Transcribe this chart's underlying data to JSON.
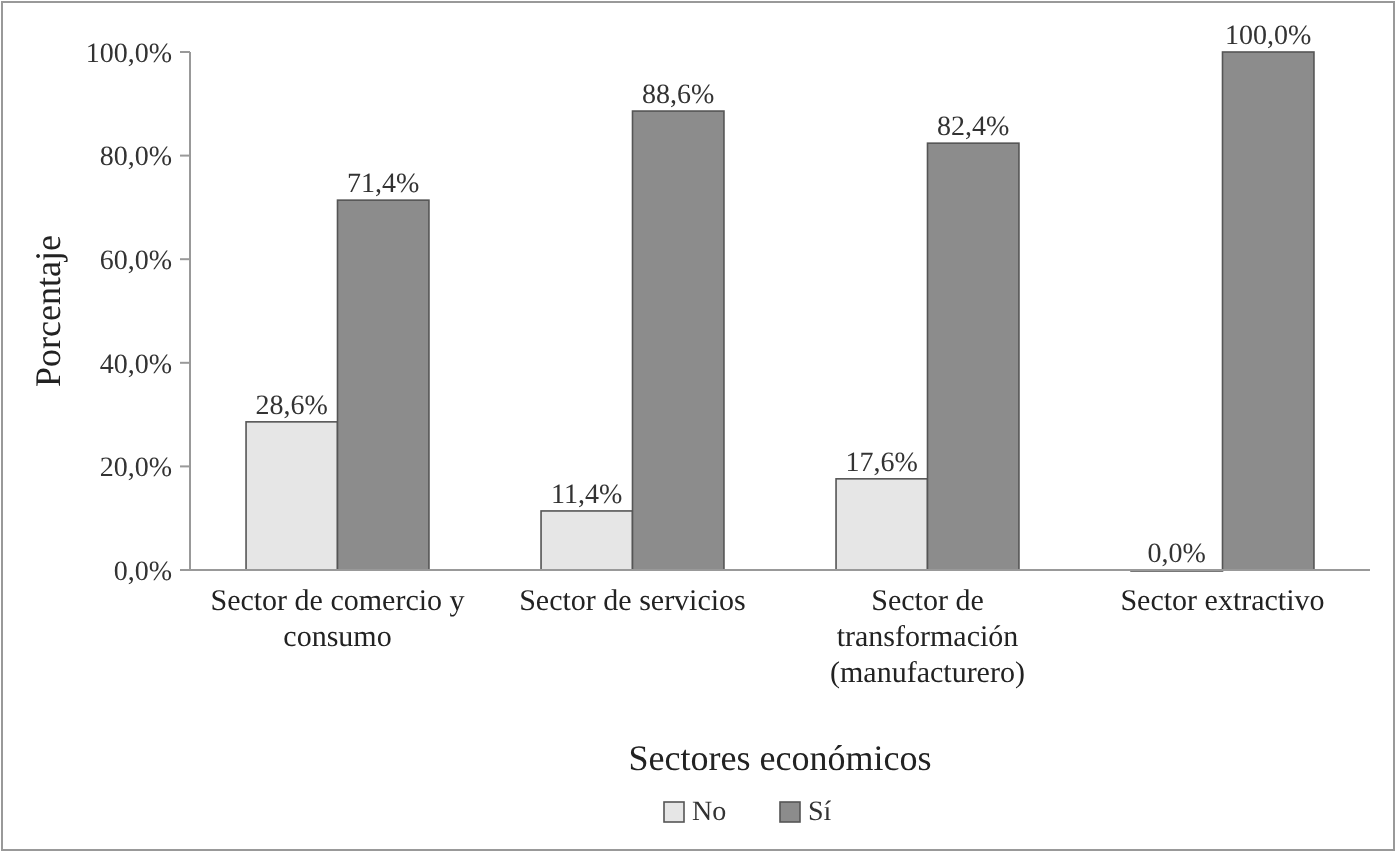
{
  "chart_data": {
    "type": "bar",
    "xlabel": "Sectores económicos",
    "ylabel": "Porcentaje",
    "categories": [
      "Sector de comercio y consumo",
      "Sector de servicios",
      "Sector de transformación (manufacturero)",
      "Sector extractivo"
    ],
    "series": [
      {
        "name": "No",
        "color": "#e6e6e6",
        "values": [
          28.6,
          11.4,
          17.6,
          0
        ],
        "value_labels": [
          "28,6%",
          "11,4%",
          "17,6%",
          "0,0%"
        ]
      },
      {
        "name": "Sí",
        "color": "#8c8c8c",
        "values": [
          71.4,
          88.6,
          82.4,
          100
        ],
        "value_labels": [
          "71,4%",
          "88,6%",
          "82,4%",
          "100,0%"
        ]
      }
    ],
    "ylim": [
      0,
      100
    ],
    "yticks": [
      {
        "value": 0,
        "label": "0,0%"
      },
      {
        "value": 20,
        "label": "20,0%"
      },
      {
        "value": 40,
        "label": "40,0%"
      },
      {
        "value": 60,
        "label": "60,0%"
      },
      {
        "value": 80,
        "label": "80,0%"
      },
      {
        "value": 100,
        "label": "100,0%"
      }
    ],
    "legend": "bottom"
  }
}
